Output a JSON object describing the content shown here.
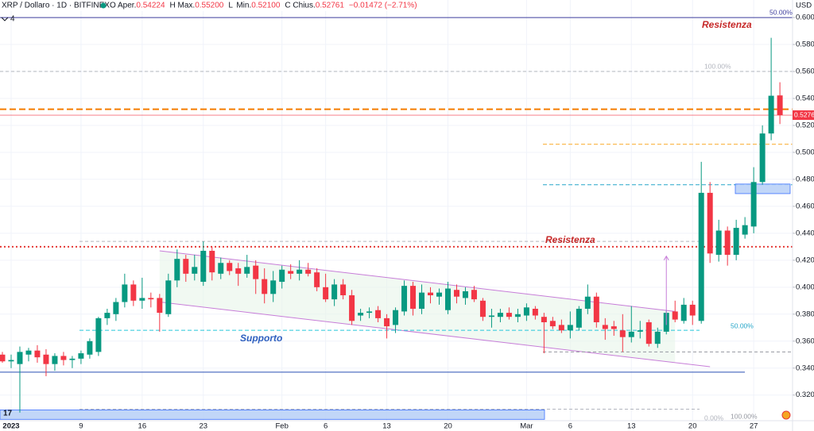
{
  "header": {
    "title": "XRP / Dollaro · 1D · BITFINEX",
    "ohlc": [
      {
        "key": "O",
        "label": "Aper.",
        "value": "0.54224"
      },
      {
        "key": "H",
        "label": "Max.",
        "value": "0.55200"
      },
      {
        "key": "L",
        "label": "Min.",
        "value": "0.52100"
      },
      {
        "key": "C",
        "label": "Chius.",
        "value": "0.52761"
      }
    ],
    "change": "−0.01472 (−2.71%)",
    "currency": "USD",
    "indicators": "4"
  },
  "chart_data": {
    "type": "candlestick",
    "categories": [
      null,
      "2023",
      null,
      null,
      null,
      null,
      null,
      null,
      null,
      "9",
      null,
      null,
      null,
      null,
      null,
      null,
      "16",
      null,
      null,
      null,
      null,
      null,
      null,
      "23",
      null,
      null,
      null,
      null,
      null,
      null,
      null,
      null,
      "Feb",
      null,
      null,
      null,
      null,
      "6",
      null,
      null,
      null,
      null,
      null,
      null,
      "13",
      null,
      null,
      null,
      null,
      null,
      null,
      "20",
      null,
      null,
      null,
      null,
      null,
      null,
      null,
      null,
      "Mar",
      null,
      null,
      null,
      null,
      "6",
      null,
      null,
      null,
      null,
      null,
      null,
      "13",
      null,
      null,
      null,
      null,
      null,
      null,
      "20",
      null,
      null,
      null,
      null,
      null,
      null,
      "27",
      null,
      null,
      null
    ],
    "open": [
      0.35,
      0.345,
      0.343,
      0.35,
      0.353,
      0.35,
      0.343,
      0.349,
      0.346,
      0.347,
      0.35,
      0.352,
      0.377,
      0.38,
      0.389,
      0.402,
      0.39,
      0.392,
      0.392,
      0.38,
      0.405,
      0.421,
      0.41,
      0.404,
      0.427,
      0.41,
      0.418,
      0.414,
      0.41,
      0.416,
      0.406,
      0.395,
      0.404,
      0.412,
      0.41,
      0.413,
      0.411,
      0.4,
      0.391,
      0.402,
      0.394,
      0.379,
      0.381,
      0.383,
      0.377,
      0.372,
      0.382,
      0.401,
      0.384,
      0.396,
      0.393,
      0.383,
      0.398,
      0.392,
      0.398,
      0.39,
      0.378,
      0.378,
      0.381,
      0.378,
      0.379,
      0.384,
      0.378,
      0.375,
      0.372,
      0.368,
      0.37,
      0.384,
      0.393,
      0.372,
      0.371,
      0.368,
      0.363,
      0.367,
      0.374,
      0.358,
      0.367,
      0.382,
      0.375,
      0.387,
      0.375,
      0.47,
      0.424,
      0.442,
      0.424,
      0.439,
      0.445,
      0.478,
      0.514,
      0.54224
    ],
    "high": [
      0.352,
      0.35,
      0.356,
      0.355,
      0.357,
      0.354,
      0.351,
      0.352,
      0.349,
      0.353,
      0.362,
      0.378,
      0.384,
      0.392,
      0.41,
      0.405,
      0.407,
      0.396,
      0.395,
      0.41,
      0.428,
      0.424,
      0.424,
      0.434,
      0.43,
      0.422,
      0.42,
      0.418,
      0.424,
      0.42,
      0.414,
      0.412,
      0.416,
      0.417,
      0.42,
      0.418,
      0.414,
      0.41,
      0.406,
      0.406,
      0.398,
      0.384,
      0.385,
      0.386,
      0.38,
      0.385,
      0.405,
      0.404,
      0.402,
      0.4,
      0.399,
      0.404,
      0.402,
      0.4,
      0.401,
      0.392,
      0.384,
      0.384,
      0.385,
      0.384,
      0.388,
      0.386,
      0.381,
      0.378,
      0.376,
      0.382,
      0.386,
      0.402,
      0.396,
      0.377,
      0.375,
      0.38,
      0.386,
      0.375,
      0.376,
      0.37,
      0.383,
      0.39,
      0.392,
      0.39,
      0.493,
      0.478,
      0.45,
      0.445,
      0.45,
      0.452,
      0.489,
      0.52,
      0.585,
      0.552
    ],
    "low": [
      0.344,
      0.34,
      0.307,
      0.345,
      0.344,
      0.334,
      0.338,
      0.342,
      0.34,
      0.343,
      0.347,
      0.349,
      0.372,
      0.375,
      0.385,
      0.386,
      0.384,
      0.385,
      0.367,
      0.378,
      0.4,
      0.404,
      0.405,
      0.401,
      0.405,
      0.406,
      0.409,
      0.401,
      0.407,
      0.395,
      0.388,
      0.389,
      0.399,
      0.406,
      0.405,
      0.408,
      0.397,
      0.389,
      0.386,
      0.391,
      0.372,
      0.375,
      0.377,
      0.374,
      0.362,
      0.366,
      0.379,
      0.379,
      0.38,
      0.388,
      0.387,
      0.38,
      0.388,
      0.387,
      0.389,
      0.375,
      0.37,
      0.374,
      0.376,
      0.374,
      0.375,
      0.376,
      0.351,
      0.369,
      0.366,
      0.362,
      0.368,
      0.38,
      0.37,
      0.361,
      0.364,
      0.352,
      0.359,
      0.362,
      0.356,
      0.355,
      0.365,
      0.374,
      0.373,
      0.372,
      0.373,
      0.418,
      0.419,
      0.416,
      0.42,
      0.436,
      0.44,
      0.476,
      0.509,
      0.521
    ],
    "close": [
      0.345,
      0.346,
      0.352,
      0.353,
      0.348,
      0.343,
      0.349,
      0.346,
      0.347,
      0.351,
      0.36,
      0.377,
      0.381,
      0.389,
      0.402,
      0.39,
      0.392,
      0.391,
      0.381,
      0.405,
      0.421,
      0.41,
      0.415,
      0.427,
      0.411,
      0.418,
      0.412,
      0.41,
      0.415,
      0.406,
      0.395,
      0.405,
      0.413,
      0.41,
      0.413,
      0.41,
      0.4,
      0.391,
      0.402,
      0.394,
      0.375,
      0.381,
      0.382,
      0.377,
      0.371,
      0.383,
      0.401,
      0.384,
      0.396,
      0.394,
      0.396,
      0.399,
      0.393,
      0.397,
      0.391,
      0.378,
      0.379,
      0.381,
      0.378,
      0.38,
      0.385,
      0.379,
      0.374,
      0.371,
      0.368,
      0.372,
      0.384,
      0.393,
      0.374,
      0.369,
      0.369,
      0.363,
      0.367,
      0.368,
      0.358,
      0.367,
      0.381,
      0.376,
      0.387,
      0.379,
      0.47,
      0.425,
      0.442,
      0.424,
      0.444,
      0.446,
      0.478,
      0.514,
      0.542,
      0.52761
    ],
    "up_color": "#089981",
    "down_color": "#f23645",
    "ylim": [
      0.301,
      0.613
    ],
    "yticks": [
      {
        "value": 0.32,
        "label": "0.32000"
      },
      {
        "value": 0.34,
        "label": "0.34000"
      },
      {
        "value": 0.36,
        "label": "0.36000"
      },
      {
        "value": 0.38,
        "label": "0.38000"
      },
      {
        "value": 0.4,
        "label": "0.40000"
      },
      {
        "value": 0.42,
        "label": "0.42000"
      },
      {
        "value": 0.44,
        "label": "0.44000"
      },
      {
        "value": 0.46,
        "label": "0.46000"
      },
      {
        "value": 0.48,
        "label": "0.48000"
      },
      {
        "value": 0.5,
        "label": "0.50000"
      },
      {
        "value": 0.52,
        "label": "0.52000"
      },
      {
        "value": 0.54,
        "label": "0.54000"
      },
      {
        "value": 0.56,
        "label": "0.56000"
      },
      {
        "value": 0.58,
        "label": "0.58000"
      },
      {
        "value": 0.6,
        "label": "0.60000"
      }
    ],
    "grid": true,
    "last_price": {
      "value": 0.52761,
      "label": "0.52761"
    },
    "levels": [
      {
        "value": 0.6,
        "color": "#3f3f9e",
        "dash": "none"
      },
      {
        "value": 0.56,
        "color": "#b2b5be",
        "dash": "4 3"
      },
      {
        "value": 0.532,
        "color": "#f57c00",
        "dash": "8 4"
      },
      {
        "value": 0.506,
        "color": "#f9a825",
        "dash": "5 3"
      },
      {
        "value": 0.476,
        "color": "#26a6c9",
        "dash": "5 3"
      },
      {
        "value": 0.434,
        "color": "#b2b5be",
        "dash": "4 3"
      },
      {
        "value": 0.43,
        "color": "#e53935",
        "dash": "2 3"
      },
      {
        "value": 0.368,
        "color": "#26c6da",
        "dash": "5 3"
      },
      {
        "value": 0.352,
        "color": "#9598a1",
        "dash": "4 3"
      },
      {
        "value": 0.337,
        "color": "#2a4fb5",
        "dash": "none"
      },
      {
        "value": 0.3095,
        "color": "#b2b5be",
        "dash": "4 3"
      }
    ],
    "channel": {
      "upper": {
        "x": [
          18,
          77
        ],
        "y": [
          0.427,
          0.382
        ]
      },
      "lower": {
        "x": [
          18,
          81
        ],
        "y": [
          0.389,
          0.341
        ]
      }
    },
    "zones": [
      {
        "low": 0.302,
        "high": 0.309
      },
      {
        "low": 0.4694,
        "high": 0.4765
      }
    ],
    "arrow": {
      "from": 0.372,
      "to": 0.423
    },
    "annotations": [
      {
        "text": "Resistenza",
        "color": "#c62828"
      },
      {
        "text": "Resistenza",
        "color": "#c62828"
      },
      {
        "text": "Supporto",
        "color": "#2e5fbf"
      }
    ],
    "fib_labels": [
      "50.00%",
      "100.00%",
      "50.00%",
      "0.00%",
      "100.00%"
    ]
  }
}
